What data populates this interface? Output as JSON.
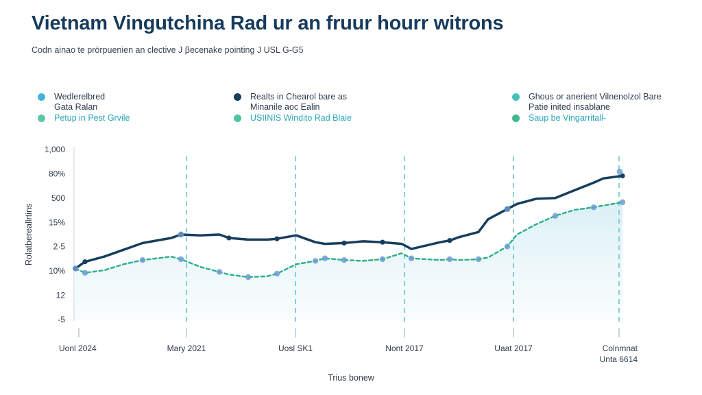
{
  "header": {
    "title": "Vietnam Vingutchina Rad ur an fruur hourr witrons",
    "subtitle": "Codn ainao te prörpuenien an clective J βecenake pointing J USL G-G5"
  },
  "legend": [
    {
      "lines": [
        "Wedlerelbred",
        "Gata Ralan"
      ],
      "color": "#3fb6d6"
    },
    {
      "lines": [
        "Petup in Pest Grvile"
      ],
      "color": "#5cc8a8",
      "accent": true
    },
    {
      "lines": [
        "Realts in Chearol bare as",
        "Minanile aoc Ealin"
      ],
      "color": "#173e5e"
    },
    {
      "lines": [
        "USIINIS Windito Rad Blaie"
      ],
      "color": "#4cc4a4",
      "accent": true
    },
    {
      "lines": [
        "Ghous or anerient Vilnenolzol Bare",
        "Patie inited insablane"
      ],
      "color": "#45c0bf",
      "accent_tail": "Vilnenolzol Bare"
    },
    {
      "lines": [
        "Saup be Vingarritall-"
      ],
      "color": "#3db88f",
      "accent": true
    }
  ],
  "chart_data": {
    "type": "line",
    "ylabel": "Rolatbereallrtins",
    "xlabel": "Trius bonew",
    "y_ticks": [
      "1,000",
      "80%",
      "500",
      "15%",
      "2·5",
      "10%",
      "12",
      "-5"
    ],
    "x_ticks": [
      "Uonl 2024",
      "Mary 2021",
      "Uosl SK1",
      "Nont 2017",
      "Uaat 2017",
      "Colnmnat"
    ],
    "x_extra_label": "Unta 6614",
    "x": [
      0,
      0.2,
      0.6,
      1,
      1.4,
      2,
      2.2,
      2.6,
      3,
      3.2,
      3.6,
      4,
      4.2,
      4.6,
      5,
      5.2,
      5.6,
      6,
      6.4,
      6.8,
      7,
      7.6,
      7.8,
      8,
      8.4,
      8.6,
      9,
      9.2,
      9.6,
      10,
      10.4,
      10.8,
      11,
      11.4
    ],
    "y_scale": {
      "min": 0,
      "max": 10
    },
    "series": [
      {
        "style": "solid",
        "color": "#173e5e",
        "values": [
          3.0,
          3.4,
          3.7,
          4.1,
          4.5,
          4.8,
          5.0,
          4.95,
          5.0,
          4.8,
          4.7,
          4.7,
          4.75,
          4.95,
          4.55,
          4.45,
          4.5,
          4.6,
          4.55,
          4.45,
          4.15,
          4.55,
          4.65,
          4.85,
          5.15,
          5.9,
          6.5,
          6.8,
          7.1,
          7.15,
          7.6,
          8.05,
          8.3,
          8.45
        ]
      },
      {
        "style": "dashed",
        "color": "#2fb08d",
        "values": [
          3.0,
          2.75,
          2.9,
          3.25,
          3.5,
          3.7,
          3.55,
          3.1,
          2.8,
          2.65,
          2.5,
          2.55,
          2.7,
          3.25,
          3.45,
          3.6,
          3.5,
          3.45,
          3.55,
          3.9,
          3.6,
          3.5,
          3.55,
          3.5,
          3.55,
          3.65,
          4.3,
          5.0,
          5.6,
          6.1,
          6.45,
          6.6,
          6.7,
          6.9
        ]
      }
    ],
    "markers_dark": [
      0,
      1,
      6,
      9,
      12,
      16,
      18,
      22,
      26,
      33
    ],
    "markers_dashed": [
      0,
      1,
      4,
      6,
      8,
      10,
      12,
      14,
      15,
      16,
      18,
      20,
      22,
      24,
      26,
      29,
      31,
      33
    ],
    "vlines_at_tick": [
      1,
      2,
      3,
      4,
      5
    ],
    "grid": false,
    "area_fill": true
  }
}
